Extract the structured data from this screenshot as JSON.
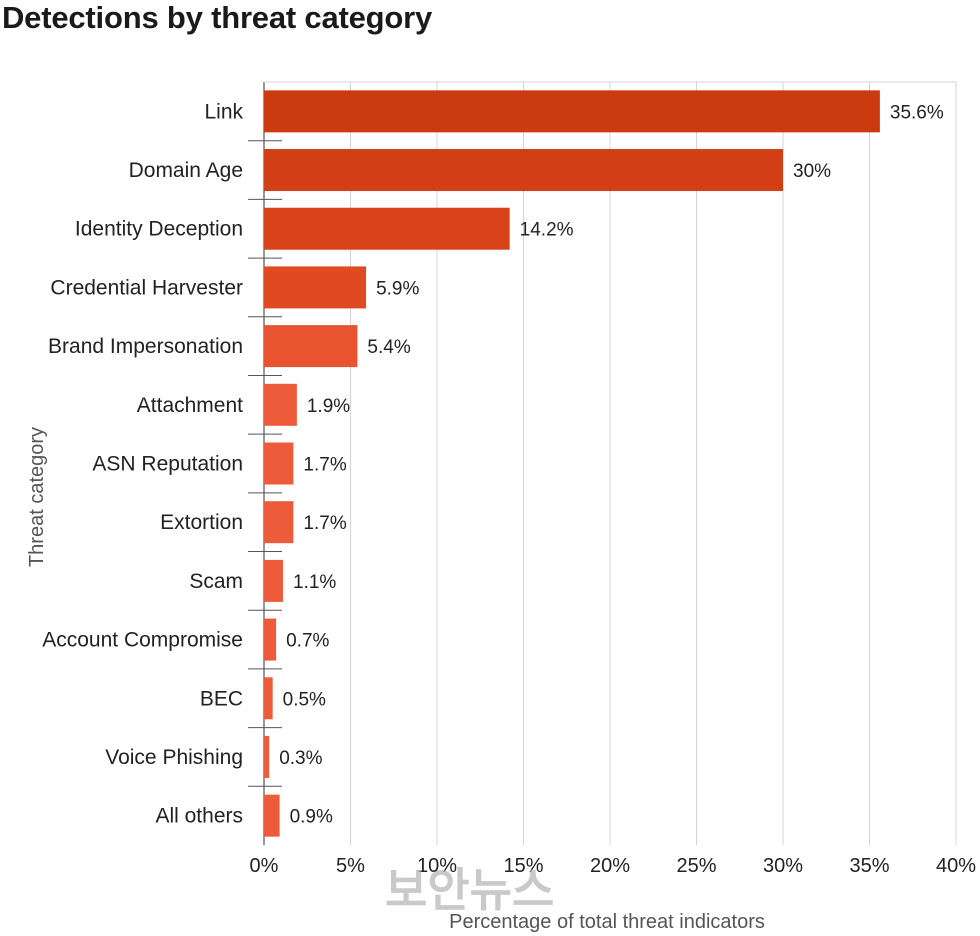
{
  "chart_data": {
    "type": "bar",
    "orientation": "horizontal",
    "title": "Detections by threat category",
    "xlabel": "Percentage of total threat indicators",
    "ylabel": "Threat category",
    "categories": [
      "Link",
      "Domain Age",
      "Identity Deception",
      "Credential Harvester",
      "Brand Impersonation",
      "Attachment",
      "ASN Reputation",
      "Extortion",
      "Scam",
      "Account Compromise",
      "BEC",
      "Voice Phishing",
      "All others"
    ],
    "values": [
      35.6,
      30,
      14.2,
      5.9,
      5.4,
      1.9,
      1.7,
      1.7,
      1.1,
      0.7,
      0.5,
      0.3,
      0.9
    ],
    "value_labels": [
      "35.6%",
      "30%",
      "14.2%",
      "5.9%",
      "5.4%",
      "1.9%",
      "1.7%",
      "1.7%",
      "1.1%",
      "0.7%",
      "0.5%",
      "0.3%",
      "0.9%"
    ],
    "xlim": [
      0,
      40
    ],
    "x_ticks": [
      "0%",
      "5%",
      "10%",
      "15%",
      "20%",
      "25%",
      "30%",
      "35%",
      "40%"
    ],
    "bar_colors": [
      "#cc3a10",
      "#d23e16",
      "#d8431a",
      "#df4a20",
      "#e85430",
      "#ee5b3a",
      "#ee5b3a",
      "#ee5b3a",
      "#ee5b3a",
      "#ee5b3a",
      "#ee5b3a",
      "#ee5b3a",
      "#ee5b3a"
    ],
    "grid": "vertical",
    "legend": "none"
  },
  "watermark": {
    "text": "보안뉴스",
    "color": "#b8b8b8"
  }
}
